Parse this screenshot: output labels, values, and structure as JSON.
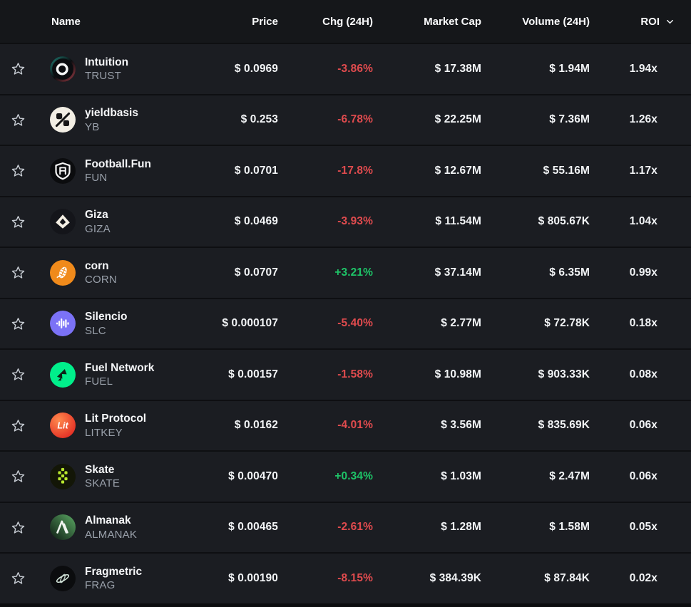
{
  "colors": {
    "positive": "#1ec468",
    "negative": "#e04b4e",
    "row_background": "#1b1d22",
    "header_background": "#15171a"
  },
  "header": {
    "name": "Name",
    "price": "Price",
    "chg": "Chg (24H)",
    "mcap": "Market Cap",
    "vol": "Volume (24H)",
    "roi": "ROI",
    "roi_sort_icon": "chevron-down"
  },
  "icons": {
    "trust": {
      "bg": "#0b0d10",
      "ring": "#f5f7f7",
      "glow1": "#2fd4c0",
      "glow2": "#ff5c6a"
    },
    "yb": {
      "bg": "#f2eee4",
      "fg": "#161616"
    },
    "fun": {
      "bg": "#0b0c0e",
      "fg": "#f5f5f5"
    },
    "giza": {
      "bg": "#14151a",
      "fg": "#f4efe4"
    },
    "corn": {
      "bg": "#f08a1b",
      "fg": "#ffffff"
    },
    "slc": {
      "bg": "#7b72f6",
      "fg": "#ffffff"
    },
    "fuel": {
      "bg": "#00ef8b",
      "fg": "#0c2417"
    },
    "litkey": {
      "bg1": "#ff8a4d",
      "bg2": "#e02420",
      "fg": "#ffffff",
      "label": "Lit"
    },
    "skate": {
      "bg": "#131607",
      "fg": "#b9e82e"
    },
    "almanak": {
      "bg1": "#5aa763",
      "bg2": "#0d1a12",
      "fg": "#f0f4f0"
    },
    "frag": {
      "bg": "#0b0c0e",
      "fg": "#d6e8dd"
    }
  },
  "rows": [
    {
      "name": "Intuition",
      "symbol": "TRUST",
      "price": "$ 0.0969",
      "chg": "-3.86%",
      "trend": "down",
      "mcap": "$ 17.38M",
      "vol": "$ 1.94M",
      "roi": "1.94x",
      "icon": "trust"
    },
    {
      "name": "yieldbasis",
      "symbol": "YB",
      "price": "$ 0.253",
      "chg": "-6.78%",
      "trend": "down",
      "mcap": "$ 22.25M",
      "vol": "$ 7.36M",
      "roi": "1.26x",
      "icon": "yb"
    },
    {
      "name": "Football.Fun",
      "symbol": "FUN",
      "price": "$ 0.0701",
      "chg": "-17.8%",
      "trend": "down",
      "mcap": "$ 12.67M",
      "vol": "$ 55.16M",
      "roi": "1.17x",
      "icon": "fun"
    },
    {
      "name": "Giza",
      "symbol": "GIZA",
      "price": "$ 0.0469",
      "chg": "-3.93%",
      "trend": "down",
      "mcap": "$ 11.54M",
      "vol": "$ 805.67K",
      "roi": "1.04x",
      "icon": "giza"
    },
    {
      "name": "corn",
      "symbol": "CORN",
      "price": "$ 0.0707",
      "chg": "+3.21%",
      "trend": "up",
      "mcap": "$ 37.14M",
      "vol": "$ 6.35M",
      "roi": "0.99x",
      "icon": "corn"
    },
    {
      "name": "Silencio",
      "symbol": "SLC",
      "price": "$ 0.000107",
      "chg": "-5.40%",
      "trend": "down",
      "mcap": "$ 2.77M",
      "vol": "$ 72.78K",
      "roi": "0.18x",
      "icon": "slc"
    },
    {
      "name": "Fuel Network",
      "symbol": "FUEL",
      "price": "$ 0.00157",
      "chg": "-1.58%",
      "trend": "down",
      "mcap": "$ 10.98M",
      "vol": "$ 903.33K",
      "roi": "0.08x",
      "icon": "fuel"
    },
    {
      "name": "Lit Protocol",
      "symbol": "LITKEY",
      "price": "$ 0.0162",
      "chg": "-4.01%",
      "trend": "down",
      "mcap": "$ 3.56M",
      "vol": "$ 835.69K",
      "roi": "0.06x",
      "icon": "litkey"
    },
    {
      "name": "Skate",
      "symbol": "SKATE",
      "price": "$ 0.00470",
      "chg": "+0.34%",
      "trend": "up",
      "mcap": "$ 1.03M",
      "vol": "$ 2.47M",
      "roi": "0.06x",
      "icon": "skate"
    },
    {
      "name": "Almanak",
      "symbol": "ALMANAK",
      "price": "$ 0.00465",
      "chg": "-2.61%",
      "trend": "down",
      "mcap": "$ 1.28M",
      "vol": "$ 1.58M",
      "roi": "0.05x",
      "icon": "almanak"
    },
    {
      "name": "Fragmetric",
      "symbol": "FRAG",
      "price": "$ 0.00190",
      "chg": "-8.15%",
      "trend": "down",
      "mcap": "$ 384.39K",
      "vol": "$ 87.84K",
      "roi": "0.02x",
      "icon": "frag"
    }
  ]
}
